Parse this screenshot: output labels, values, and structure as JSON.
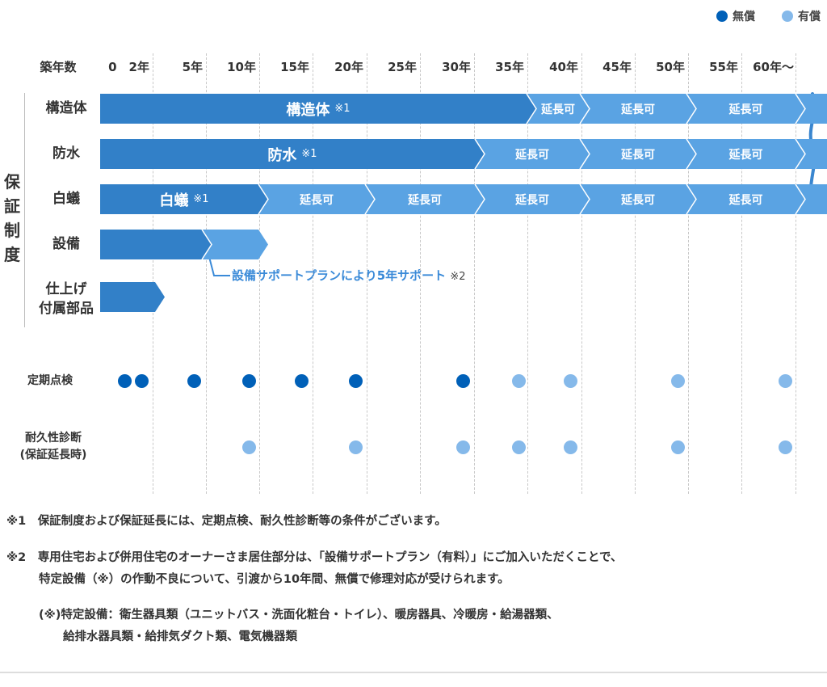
{
  "legend": [
    {
      "label": "無償",
      "color": "#0060b8"
    },
    {
      "label": "有償",
      "color": "#85b9ea"
    }
  ],
  "colors": {
    "free_bar": "#3280c8",
    "extension_bar": "#5aa3e3",
    "free_dot": "#0060b8",
    "paid_dot": "#85b9ea",
    "callout": "#3a8ad8"
  },
  "axis": {
    "label": "築年数",
    "ticks": [
      "0　2年",
      "5年",
      "10年",
      "15年",
      "20年",
      "25年",
      "30年",
      "35年",
      "40年",
      "45年",
      "50年",
      "55年",
      "60年〜"
    ]
  },
  "warranty": {
    "group_label": "保証制度",
    "rows": [
      {
        "label": "構造体",
        "segments": [
          {
            "text": "構造体",
            "note": "※1"
          },
          {
            "text": "延長可"
          },
          {
            "text": "延長可"
          },
          {
            "text": "延長可"
          },
          {
            "text": ""
          }
        ]
      },
      {
        "label": "防水",
        "segments": [
          {
            "text": "防水",
            "note": "※1"
          },
          {
            "text": "延長可"
          },
          {
            "text": "延長可"
          },
          {
            "text": "延長可"
          },
          {
            "text": ""
          }
        ]
      },
      {
        "label": "白蟻",
        "segments": [
          {
            "text": "白蟻",
            "note": "※1"
          },
          {
            "text": "延長可"
          },
          {
            "text": "延長可"
          },
          {
            "text": "延長可"
          },
          {
            "text": "延長可"
          },
          {
            "text": "延長可"
          },
          {
            "text": ""
          }
        ]
      },
      {
        "label": "設備",
        "segments": [
          {
            "text": ""
          },
          {
            "text": ""
          }
        ]
      },
      {
        "label": "仕上げ\n付属部品",
        "segments": [
          {
            "text": ""
          }
        ]
      }
    ],
    "callout": {
      "text": "設備サポートプランにより5年サポート",
      "note": "※2"
    }
  },
  "inspections": {
    "label": "定期点検",
    "points": [
      {
        "year": 1,
        "paid": false
      },
      {
        "year": 2,
        "paid": false
      },
      {
        "year": 5,
        "paid": false
      },
      {
        "year": 10,
        "paid": false
      },
      {
        "year": 15,
        "paid": false
      },
      {
        "year": 20,
        "paid": false
      },
      {
        "year": 30,
        "paid": false
      },
      {
        "year": 35,
        "paid": true
      },
      {
        "year": 40,
        "paid": true
      },
      {
        "year": 50,
        "paid": true
      },
      {
        "year": 60,
        "paid": true
      }
    ]
  },
  "durability": {
    "label": "耐久性診断\n(保証延長時)",
    "points": [
      {
        "year": 10,
        "paid": true
      },
      {
        "year": 20,
        "paid": true
      },
      {
        "year": 30,
        "paid": true
      },
      {
        "year": 35,
        "paid": true
      },
      {
        "year": 40,
        "paid": true
      },
      {
        "year": 50,
        "paid": true
      },
      {
        "year": 60,
        "paid": true
      }
    ]
  },
  "footnotes": {
    "n1_mark": "※1",
    "n1": "保証制度および保証延長には、定期点検、耐久性診断等の条件がございます。",
    "n2_mark": "※2",
    "n2_line1": "専用住宅および併用住宅のオーナーさま居住部分は、「設備サポートプラン（有料）」にご加入いただくことで、",
    "n2_line2": "特定設備（※）の作動不良について、引渡から10年間、無償で修理対応が受けられます。",
    "n3_line1": "(※)特定設備：衛生器具類（ユニットバス・洗面化粧台・トイレ）、暖房器具、冷暖房・給湯器類、",
    "n3_line2": "給排水器具類・給排気ダクト類、電気機器類"
  }
}
